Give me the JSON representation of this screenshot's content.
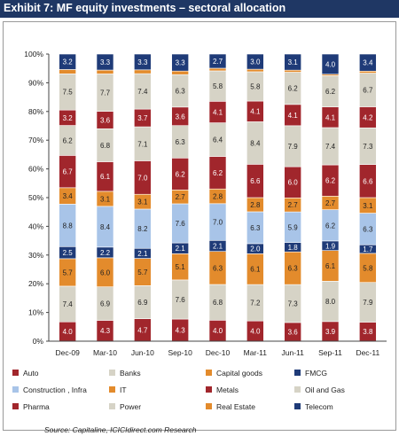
{
  "header": {
    "title": "Exhibit 7: MF equity investments – sectoral allocation"
  },
  "source": "Source: Capitaline, ICICIdirect.com Research",
  "chart_data": {
    "type": "bar",
    "stacked": true,
    "categories": [
      "Dec-09",
      "Mar-10",
      "Jun-10",
      "Sep-10",
      "Dec-10",
      "Mar-11",
      "Jun-11",
      "Sep-11",
      "Dec-11"
    ],
    "ylim": [
      0,
      100
    ],
    "yticks": [
      "0%",
      "10%",
      "20%",
      "30%",
      "40%",
      "50%",
      "60%",
      "70%",
      "80%",
      "90%",
      "100%"
    ],
    "grid": false,
    "legend_position": "bottom",
    "series": [
      {
        "name": "Auto",
        "color": "#a1262c",
        "label_color": "#ffffff",
        "values": [
          4.0,
          4.3,
          4.7,
          4.3,
          4.0,
          4.0,
          3.6,
          3.9,
          3.8
        ],
        "labels": [
          "4.0",
          "4.3",
          "4.7",
          "4.3",
          "4.0",
          "4.0",
          "3.6",
          "3.9",
          "3.8"
        ]
      },
      {
        "name": "Banks",
        "color": "#d6d3c6",
        "label_color": "#222222",
        "values": [
          7.4,
          6.9,
          6.9,
          7.6,
          6.8,
          7.2,
          7.3,
          8.0,
          7.9
        ],
        "labels": [
          "7.4",
          "6.9",
          "6.9",
          "7.6",
          "6.8",
          "7.2",
          "7.3",
          "8.0",
          "7.9"
        ]
      },
      {
        "name": "Capital goods",
        "color": "#e38b2c",
        "label_color": "#222222",
        "values": [
          5.7,
          6.0,
          5.7,
          5.1,
          6.3,
          6.1,
          6.3,
          6.1,
          5.8
        ],
        "labels": [
          "5.7",
          "6.0",
          "5.7",
          "5.1",
          "6.3",
          "6.1",
          "6.3",
          "6.1",
          "5.8"
        ]
      },
      {
        "name": "FMCG",
        "color": "#1f3b78",
        "label_color": "#ffffff",
        "values": [
          2.5,
          2.2,
          2.1,
          2.1,
          2.1,
          2.0,
          1.8,
          1.9,
          1.7
        ],
        "labels": [
          "2.5",
          "2.2",
          "2.1",
          "2.1",
          "2.1",
          "2.0",
          "1.8",
          "1.9",
          "1.7"
        ]
      },
      {
        "name": "Construction , Infra",
        "color": "#a8c4e8",
        "label_color": "#222222",
        "values": [
          8.8,
          8.4,
          8.2,
          7.6,
          7.0,
          6.3,
          5.9,
          6.2,
          6.3
        ],
        "labels": [
          "8.8",
          "8.4",
          "8.2",
          "7.6",
          "7.0",
          "6.3",
          "5.9",
          "6.2",
          "6.3"
        ]
      },
      {
        "name": "IT",
        "color": "#e38b2c",
        "label_color": "#222222",
        "values": [
          3.4,
          3.1,
          3.1,
          2.7,
          2.8,
          2.8,
          2.7,
          2.7,
          3.1
        ],
        "labels": [
          "3.4",
          "3.1",
          "3.1",
          "2.7",
          "2.8",
          "2.8",
          "2.7",
          "2.7",
          "3.1"
        ]
      },
      {
        "name": "Metals",
        "color": "#a1262c",
        "label_color": "#ffffff",
        "values": [
          6.7,
          6.1,
          7.0,
          6.2,
          6.2,
          6.6,
          6.0,
          6.2,
          6.6
        ],
        "labels": [
          "6.7",
          "6.1",
          "7.0",
          "6.2",
          "6.2",
          "6.6",
          "6.0",
          "6.2",
          "6.6"
        ]
      },
      {
        "name": "Oil and Gas",
        "color": "#d6d3c6",
        "label_color": "#222222",
        "values": [
          6.2,
          6.8,
          7.1,
          6.3,
          6.4,
          8.4,
          7.9,
          7.4,
          7.3
        ],
        "labels": [
          "6.2",
          "6.8",
          "7.1",
          "6.3",
          "6.4",
          "8.4",
          "7.9",
          "7.4",
          "7.3"
        ]
      },
      {
        "name": "Pharma",
        "color": "#a1262c",
        "label_color": "#ffffff",
        "values": [
          3.2,
          3.6,
          3.7,
          3.6,
          4.1,
          4.1,
          4.1,
          4.1,
          4.2
        ],
        "labels": [
          "3.2",
          "3.6",
          "3.7",
          "3.6",
          "4.1",
          "4.1",
          "4.1",
          "4.1",
          "4.2"
        ]
      },
      {
        "name": "Power",
        "color": "#d6d3c6",
        "label_color": "#222222",
        "values": [
          7.5,
          7.7,
          7.4,
          6.3,
          5.8,
          5.8,
          6.2,
          6.2,
          6.7
        ],
        "labels": [
          "7.5",
          "7.7",
          "7.4",
          "6.3",
          "5.8",
          "5.8",
          "6.2",
          "6.2",
          "6.7"
        ]
      },
      {
        "name": "Real Estate",
        "color": "#e38b2c",
        "label_color": "#222222",
        "values": [
          0.9,
          0.8,
          0.8,
          0.7,
          0.5,
          0.5,
          0.4,
          0.3,
          0.4
        ],
        "labels": [
          "",
          "",
          "",
          "",
          "",
          "",
          "",
          "",
          ""
        ]
      },
      {
        "name": "Telecom",
        "color": "#1f3b78",
        "label_color": "#ffffff",
        "values": [
          3.2,
          3.3,
          3.3,
          3.3,
          2.7,
          3.0,
          3.1,
          4.0,
          3.4
        ],
        "labels": [
          "3.2",
          "3.3",
          "3.3",
          "3.3",
          "2.7",
          "3.0",
          "3.1",
          "4.0",
          "3.4"
        ]
      }
    ]
  }
}
